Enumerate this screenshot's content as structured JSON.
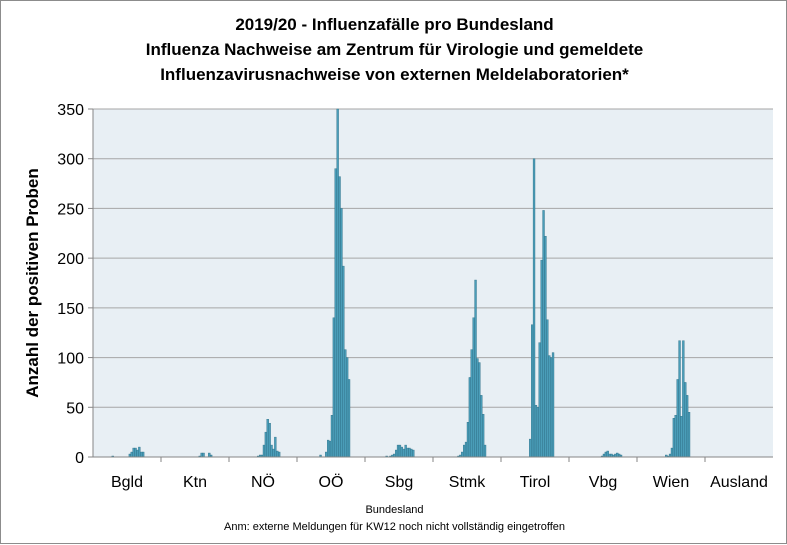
{
  "chart_data": {
    "type": "bar",
    "title_lines": [
      "2019/20 - Influenzafälle pro Bundesland",
      "Influenza Nachweise am Zentrum für Virologie und gemeldete",
      "Influenzavirusnachweise  von externen Meldelaboratorien*"
    ],
    "xlabel": "Bundesland",
    "ylabel": "Anzahl der positiven Proben",
    "footnote": "Anm:  externe  Meldungen  für KW12 noch nicht vollständig eingetroffen",
    "ylim": [
      0,
      350
    ],
    "yticks": [
      0,
      50,
      100,
      150,
      200,
      250,
      300,
      350
    ],
    "grid": true,
    "legend": "none",
    "colors": {
      "bar_fill": "#4a9db8",
      "bar_edge": "#2d6f86",
      "plot_bg": "#e8eff4",
      "grid": "#a6a6a6"
    },
    "categories": [
      "Bgld",
      "Ktn",
      "NÖ",
      "OÖ",
      "Sbg",
      "Stmk",
      "Tirol",
      "Vbg",
      "Wien",
      "Ausland"
    ],
    "series_per_category": [
      {
        "name": "Bgld",
        "values": [
          0,
          0,
          1,
          0,
          0,
          0,
          0,
          0,
          0,
          0,
          0,
          3,
          5,
          9,
          9,
          7,
          10,
          5,
          5,
          0
        ]
      },
      {
        "name": "Ktn",
        "values": [
          0,
          0,
          0,
          0,
          0,
          0,
          0,
          0,
          0,
          0,
          0,
          0,
          1,
          4,
          4,
          0,
          0,
          4,
          2,
          0
        ]
      },
      {
        "name": "NÖ",
        "values": [
          0,
          0,
          0,
          0,
          0,
          0,
          0,
          1,
          2,
          2,
          12,
          25,
          38,
          34,
          12,
          8,
          20,
          6,
          5,
          0
        ]
      },
      {
        "name": "OÖ",
        "values": [
          0,
          0,
          0,
          0,
          2,
          0,
          0,
          5,
          17,
          16,
          42,
          140,
          290,
          350,
          282,
          250,
          192,
          108,
          100,
          78
        ]
      },
      {
        "name": "Sbg",
        "values": [
          0,
          0,
          0,
          1,
          0,
          1,
          2,
          3,
          7,
          12,
          12,
          10,
          8,
          12,
          9,
          9,
          8,
          7,
          0,
          0
        ]
      },
      {
        "name": "Stmk",
        "values": [
          0,
          0,
          0,
          0,
          0,
          1,
          2,
          5,
          12,
          15,
          35,
          80,
          108,
          140,
          178,
          99,
          95,
          62,
          43,
          12
        ]
      },
      {
        "name": "Tirol",
        "values": [
          0,
          0,
          0,
          0,
          0,
          0,
          0,
          18,
          133,
          300,
          52,
          50,
          115,
          198,
          248,
          222,
          138,
          102,
          100,
          105
        ]
      },
      {
        "name": "Vbg",
        "values": [
          0,
          0,
          0,
          0,
          0,
          0,
          0,
          0,
          0,
          1,
          3,
          5,
          6,
          3,
          3,
          2,
          3,
          4,
          3,
          2
        ]
      },
      {
        "name": "Wien",
        "values": [
          0,
          0,
          0,
          0,
          0,
          0,
          0,
          2,
          1,
          3,
          9,
          39,
          42,
          78,
          117,
          41,
          117,
          75,
          62,
          45
        ]
      },
      {
        "name": "Ausland",
        "values": [
          0,
          0,
          0,
          0,
          0,
          0,
          0,
          0,
          0,
          0,
          0,
          0,
          0,
          0,
          0,
          0,
          0,
          0,
          0,
          0
        ]
      }
    ]
  }
}
